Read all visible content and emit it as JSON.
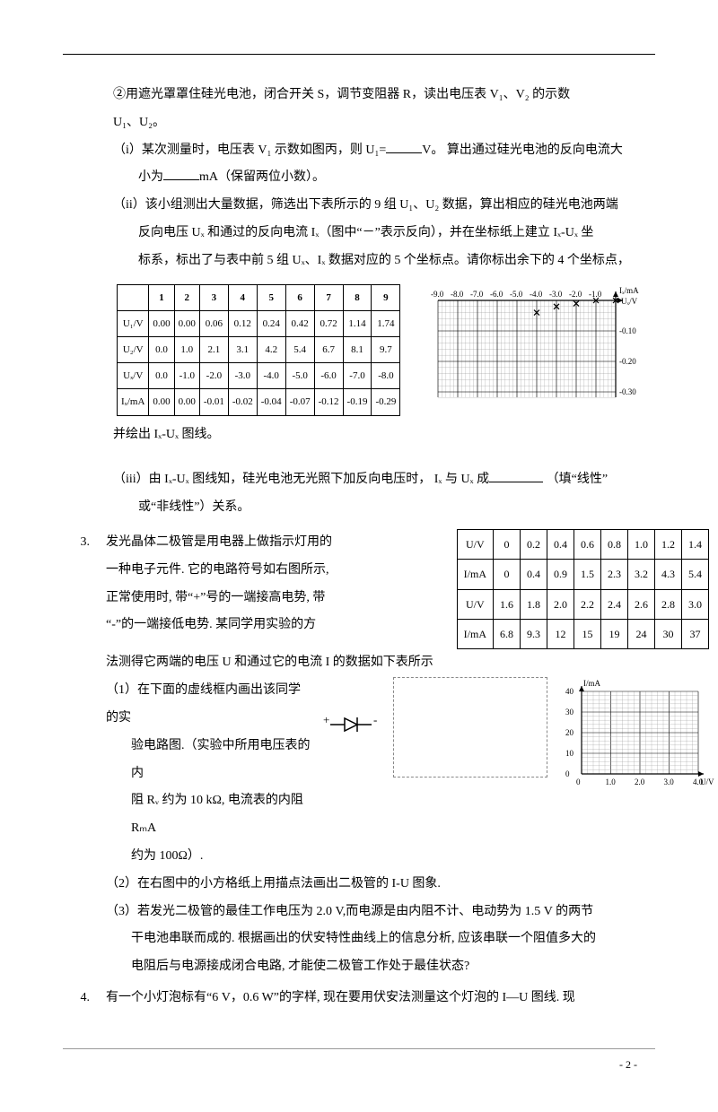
{
  "line_step2": "②用遮光罩罩住硅光电池，闭合开关 S，调节变阻器 R，读出电压表 V₁、V₂ 的示数",
  "line_step2b": "U₁、U₂。",
  "line_i_a": "（i）某次测量时，电压表 V₁ 示数如图丙，则 U₁=",
  "line_i_b": "V。 算出通过硅光电池的反向电流大",
  "line_i_c": "小为",
  "line_i_d": "mA（保留两位小数）。",
  "line_ii_a": "（ii）该小组测出大量数据，筛选出下表所示的 9 组 U₁、U₂ 数据，算出相应的硅光电池两端",
  "line_ii_b": "反向电压 Uₓ 和通过的反向电流 Iₓ（图中“－”表示反向），并在坐标纸上建立 Iₓ-Uₓ 坐",
  "line_ii_c": "标系，标出了与表中前 5 组 Uₓ、Iₓ 数据对应的 5 个坐标点。请你标出余下的 4 个坐标点，",
  "table1": {
    "cols": [
      "",
      "1",
      "2",
      "3",
      "4",
      "5",
      "6",
      "7",
      "8",
      "9"
    ],
    "rows": [
      [
        "U₁/V",
        "0.00",
        "0.00",
        "0.06",
        "0.12",
        "0.24",
        "0.42",
        "0.72",
        "1.14",
        "1.74"
      ],
      [
        "U₂/V",
        "0.0",
        "1.0",
        "2.1",
        "3.1",
        "4.2",
        "5.4",
        "6.7",
        "8.1",
        "9.7"
      ],
      [
        "Uₓ/V",
        "0.0",
        "-1.0",
        "-2.0",
        "-3.0",
        "-4.0",
        "-5.0",
        "-6.0",
        "-7.0",
        "-8.0"
      ],
      [
        "Iₓ/mA",
        "0.00",
        "0.00",
        "-0.01",
        "-0.02",
        "-0.04",
        "-0.07",
        "-0.12",
        "-0.19",
        "-0.29"
      ]
    ]
  },
  "graph1": {
    "xlabels": [
      "-9.0",
      "-8.0",
      "-7.0",
      "-6.0",
      "-5.0",
      "-4.0",
      "-3.0",
      "-2.0",
      "-1.0"
    ],
    "xlabel_axis": "Uₓ/V",
    "ylabel_axis": "Iₓ/mA",
    "ylabels": [
      "-0.10",
      "-0.20",
      "-0.30"
    ],
    "points": [
      [
        0,
        0
      ],
      [
        -1,
        0
      ],
      [
        -2,
        -0.01
      ],
      [
        -3,
        -0.02
      ],
      [
        -4,
        -0.04
      ]
    ]
  },
  "line_graph_after": "并绘出 Iₓ-Uₓ 图线。",
  "line_iii_a": "（iii）由 Iₓ-Uₓ 图线知，硅光电池无光照下加反向电压时， Iₓ 与 Uₓ 成",
  "line_iii_b": "（填“线性”",
  "line_iii_c": "或“非线性”）关系。",
  "q3": {
    "n": "3.",
    "l1": "发光晶体二极管是用电器上做指示灯用的",
    "l2": "一种电子元件. 它的电路符号如右图所示,",
    "l3": "正常使用时, 带“+”号的一端接高电势, 带",
    "l4": "“-”的一端接低电势. 某同学用实验的方",
    "l5": "法测得它两端的电压 U 和通过它的电流 I 的数据如下表所示",
    "table": {
      "r1": [
        "U/V",
        "0",
        "0.2",
        "0.4",
        "0.6",
        "0.8",
        "1.0",
        "1.2",
        "1.4"
      ],
      "r2": [
        "I/mA",
        "0",
        "0.4",
        "0.9",
        "1.5",
        "2.3",
        "3.2",
        "4.3",
        "5.4"
      ],
      "r3": [
        "U/V",
        "1.6",
        "1.8",
        "2.0",
        "2.2",
        "2.4",
        "2.6",
        "2.8",
        "3.0"
      ],
      "r4": [
        "I/mA",
        "6.8",
        "9.3",
        "12",
        "15",
        "19",
        "24",
        "30",
        "37"
      ]
    },
    "p1a": "（1）在下面的虚线框内画出该同学的实",
    "p1b": "验电路图.（实验中所用电压表的内",
    "p1c": "阻 Rᵥ 约为 10  kΩ, 电流表的内阻 RₘA",
    "p1d": "约为 100Ω）.",
    "diode_plus": "+",
    "diode_minus": "-",
    "graph": {
      "ylabel": "I/mA",
      "xlabel": "U/V",
      "yticks": [
        "40",
        "30",
        "20",
        "10",
        "0"
      ],
      "xticks": [
        "0",
        "1.0",
        "2.0",
        "3.0",
        "4.0"
      ]
    },
    "p2": "（2）在右图中的小方格纸上用描点法画出二极管的 I-U 图象.",
    "p3a": "（3）若发光二极管的最佳工作电压为 2.0  V,而电源是由内阻不计、电动势为 1.5  V 的两节",
    "p3b": "干电池串联而成的. 根据画出的伏安特性曲线上的信息分析, 应该串联一个阻值多大的",
    "p3c": "电阻后与电源接成闭合电路, 才能使二极管工作处于最佳状态?"
  },
  "q4": {
    "n": "4.",
    "l1": "有一个小灯泡标有“6 V，0.6 W”的字样, 现在要用伏安法测量这个灯泡的 I—U 图线. 现"
  },
  "page": "- 2 -"
}
